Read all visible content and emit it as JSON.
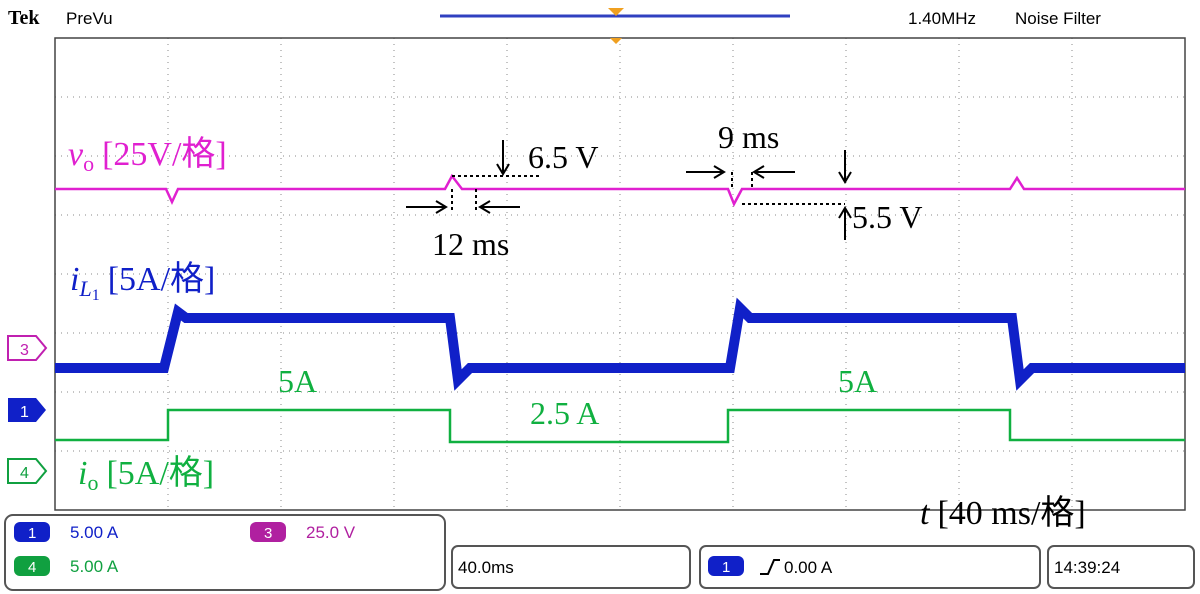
{
  "header": {
    "brand": "Tek",
    "mode": "PreVu",
    "bandwidth": "1.40MHz",
    "filter": "Noise Filter"
  },
  "traces": {
    "vo": {
      "symbol": "v",
      "sub": "o",
      "scale": "[25V/格]"
    },
    "iL1": {
      "symbol": "i",
      "sub": "L",
      "subsub": "1",
      "scale": "[5A/格]"
    },
    "io": {
      "symbol": "i",
      "sub": "o",
      "scale": "[5A/格]"
    },
    "time": {
      "symbol": "t",
      "scale": "[40 ms/格]"
    }
  },
  "annotations": {
    "overshoot": "6.5 V",
    "undershoot": "5.5 V",
    "recovery_up": "12 ms",
    "recovery_down": "9 ms",
    "io_high_1": "5A",
    "io_low": "2.5 A",
    "io_high_2": "5A"
  },
  "markers": {
    "ch3": "3",
    "ch1": "1",
    "ch4": "4"
  },
  "status": {
    "ch1": {
      "num": "1",
      "scale": "5.00 A"
    },
    "ch3": {
      "num": "3",
      "scale": "25.0 V"
    },
    "ch4": {
      "num": "4",
      "scale": "5.00 A"
    },
    "timebase": "40.0ms",
    "trigger": {
      "num": "1",
      "level": "0.00 A"
    },
    "clock": "14:39:24"
  }
}
